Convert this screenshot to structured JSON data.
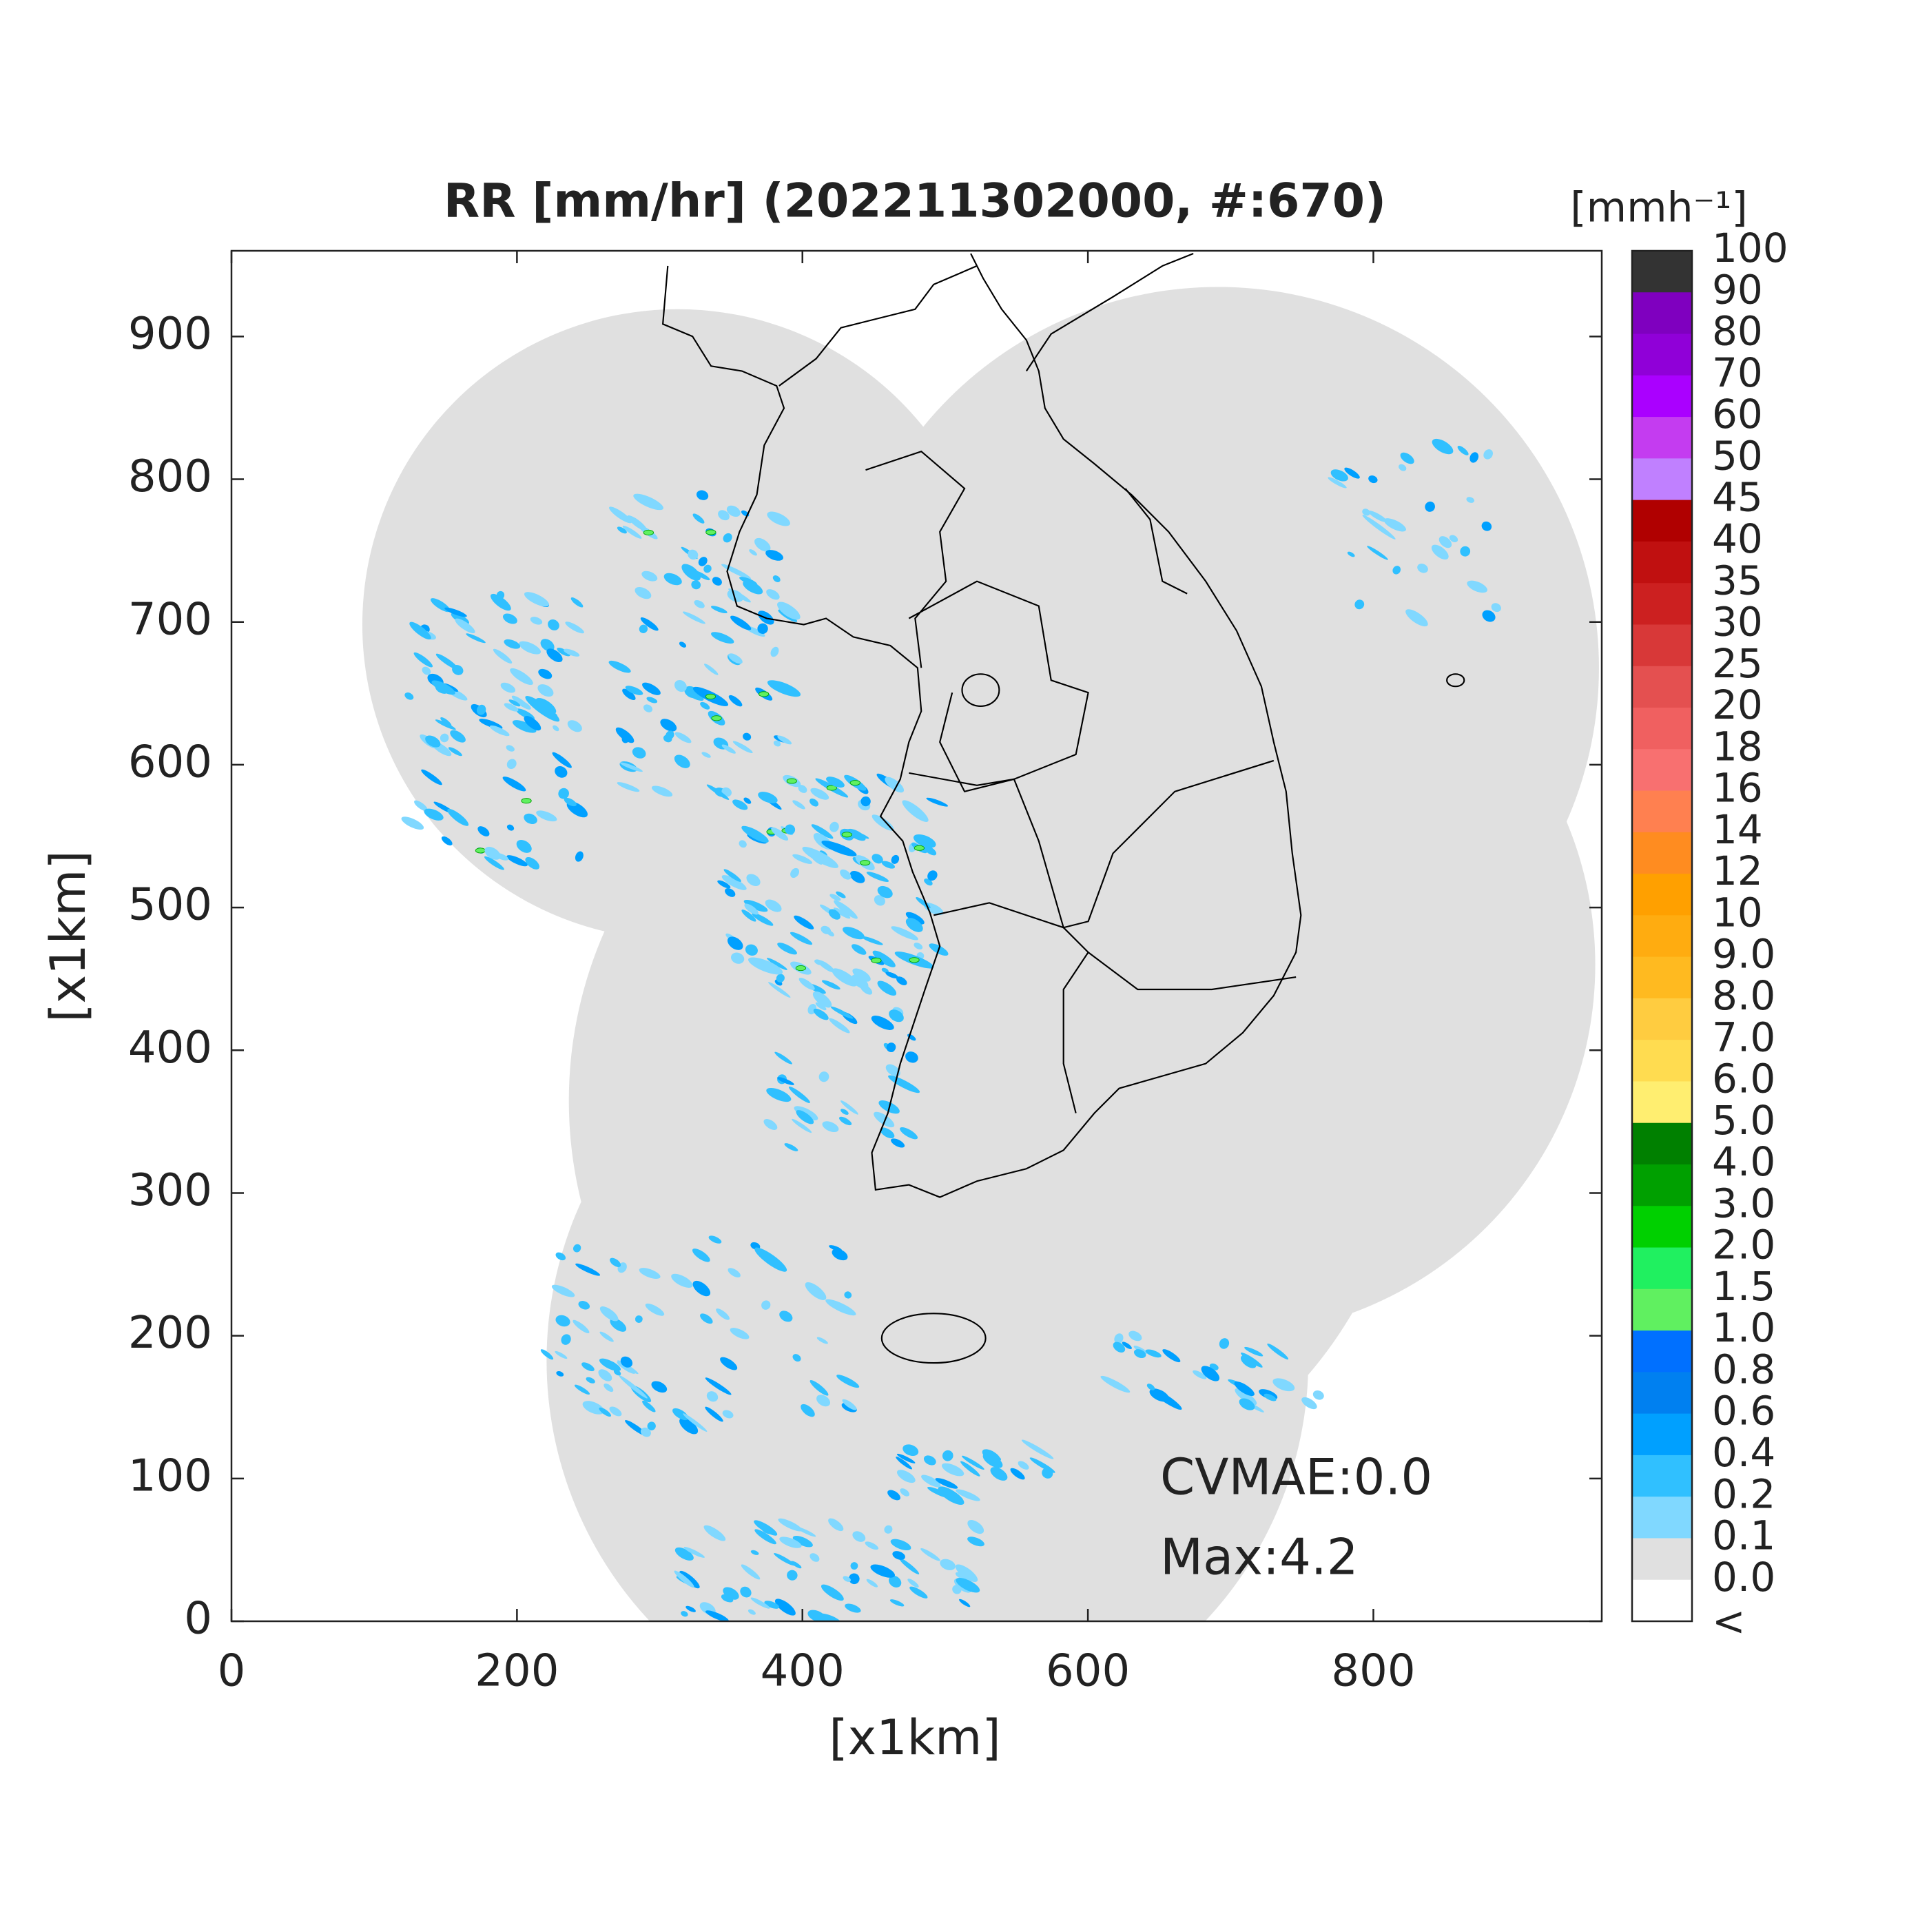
{
  "title": "RR [mm/hr] (202211302000, #:670)",
  "x_axis": {
    "label": "[x1km]",
    "lim": [
      0,
      960
    ],
    "ticks": [
      0,
      200,
      400,
      600,
      800
    ]
  },
  "y_axis": {
    "label": "[x1km]",
    "lim": [
      0,
      960
    ],
    "ticks": [
      0,
      100,
      200,
      300,
      400,
      500,
      600,
      700,
      800,
      900
    ]
  },
  "colorbar": {
    "unit": "[mmh⁻¹]",
    "levels": [
      100,
      90,
      80,
      70,
      60,
      50,
      45,
      40,
      35,
      30,
      25,
      20,
      18,
      16,
      14,
      12,
      10,
      {
        "value": 9,
        "label": "9.0"
      },
      {
        "value": 8,
        "label": "8.0"
      },
      {
        "value": 7,
        "label": "7.0"
      },
      {
        "value": 6,
        "label": "6.0"
      },
      {
        "value": 5,
        "label": "5.0"
      },
      {
        "value": 4,
        "label": "4.0"
      },
      {
        "value": 3,
        "label": "3.0"
      },
      {
        "value": 2,
        "label": "2.0"
      },
      1.5,
      {
        "value": 1,
        "label": "1.0"
      },
      0.8,
      0.6,
      0.4,
      0.2,
      0.1,
      {
        "value": 0,
        "label": "0.0"
      }
    ],
    "below_label": "<",
    "colors": [
      "#333333",
      "#7f00bf",
      "#9000d8",
      "#aa00ff",
      "#c43cf0",
      "#c080ff",
      "#b00000",
      "#c01010",
      "#cc2020",
      "#d83838",
      "#e45050",
      "#f06060",
      "#f87070",
      "#ff8050",
      "#ff8c20",
      "#ffa000",
      "#ffac10",
      "#ffba20",
      "#ffcc40",
      "#ffdc50",
      "#ffee70",
      "#008000",
      "#00a000",
      "#00d000",
      "#20f060",
      "#60f060",
      "#0070ff",
      "#0080f0",
      "#00a0ff",
      "#30c0ff",
      "#80d8ff",
      "#e0e0e0",
      "#ffffff"
    ]
  },
  "annotations": [
    "CVMAE:0.0",
    "Max:4.2"
  ]
}
